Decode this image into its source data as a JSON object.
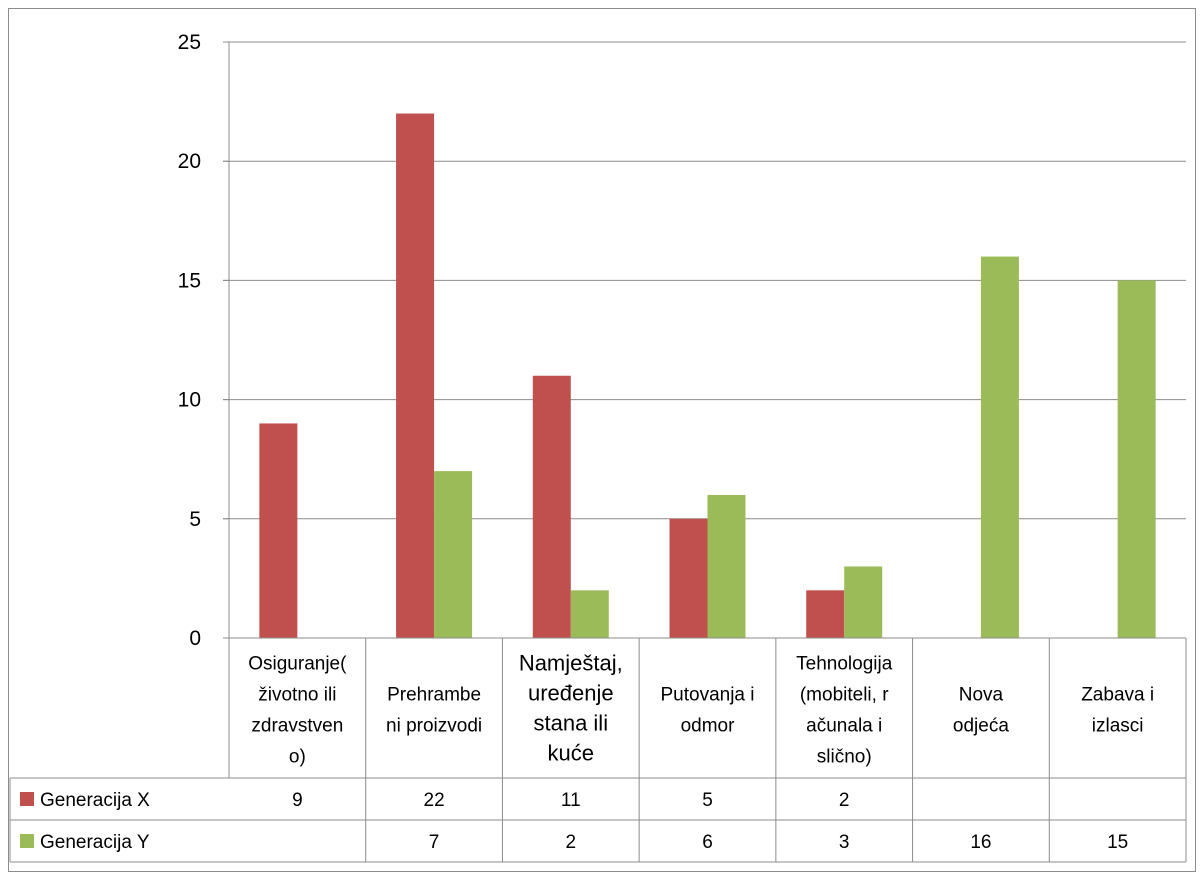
{
  "chart_data": {
    "type": "bar",
    "title": "",
    "xlabel": "",
    "ylabel": "",
    "ylim": [
      0,
      25
    ],
    "yticks": [
      0,
      5,
      10,
      15,
      20,
      25
    ],
    "grid": true,
    "legend": "data-table",
    "categories": [
      [
        "Osiguranje(",
        "životno ili",
        "zdravstven",
        "o)"
      ],
      [
        "Prehrambe",
        "ni proizvodi"
      ],
      [
        "Namještaj,",
        "uređenje",
        "stana ili",
        "kuće"
      ],
      [
        "Putovanja i",
        "odmor"
      ],
      [
        "Tehnologija",
        "(mobiteli, r",
        "ačunala i",
        "slično)"
      ],
      [
        "Nova",
        "odjeća"
      ],
      [
        "Zabava i",
        "izlasci"
      ]
    ],
    "series": [
      {
        "name": "Generacija X",
        "color": "#c0504d",
        "values": [
          9,
          22,
          11,
          5,
          2,
          null,
          null
        ]
      },
      {
        "name": "Generacija Y",
        "color": "#9bbb59",
        "values": [
          null,
          7,
          2,
          6,
          3,
          16,
          15
        ]
      }
    ]
  }
}
